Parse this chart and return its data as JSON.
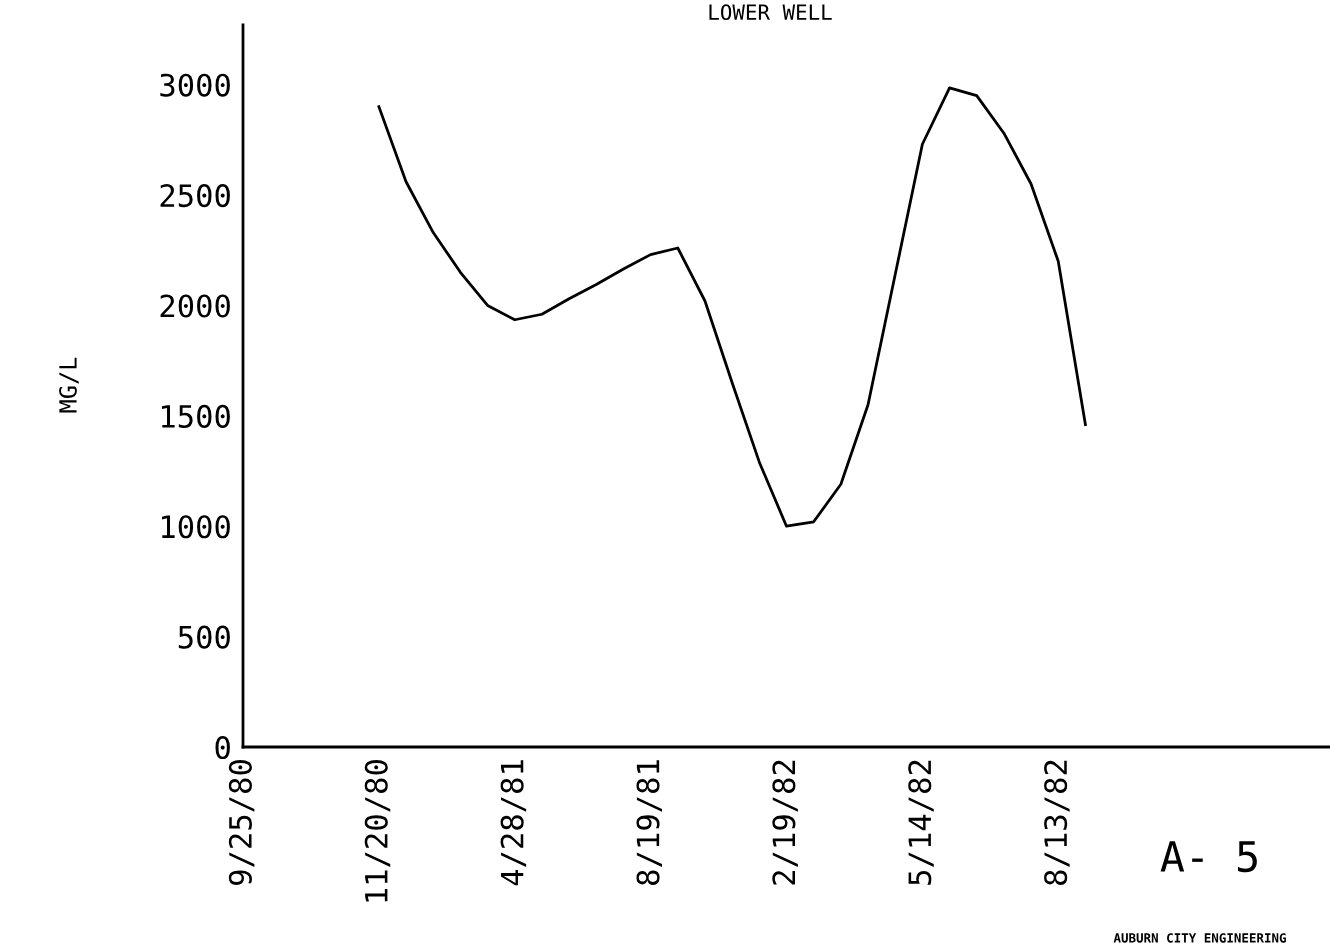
{
  "chart_data": {
    "type": "line",
    "title": "LOWER WELL",
    "ylabel": "MG/L",
    "categories": [
      "9/25/80",
      null,
      null,
      null,
      null,
      "11/20/80",
      null,
      null,
      null,
      null,
      "4/28/81",
      null,
      null,
      null,
      null,
      "8/19/81",
      null,
      null,
      null,
      null,
      "2/19/82",
      null,
      null,
      null,
      null,
      "5/14/82",
      null,
      null,
      null,
      null,
      "8/13/82",
      null,
      null,
      null,
      null,
      null,
      null,
      null,
      null,
      null,
      null
    ],
    "series": [
      {
        "color": "#000000",
        "values": [
          null,
          null,
          null,
          null,
          null,
          2900,
          2560,
          2330,
          2150,
          2000,
          1935,
          1960,
          2030,
          2095,
          2165,
          2230,
          2260,
          2020,
          1650,
          1290,
          1000,
          1020,
          1190,
          1550,
          2140,
          2730,
          2985,
          2950,
          2780,
          2550,
          2200,
          1460,
          null,
          null,
          null,
          null,
          null,
          null,
          null,
          null,
          null
        ]
      }
    ],
    "ylim": [
      0,
      3270
    ],
    "yticks": [
      0,
      500,
      1000,
      1500,
      2000,
      2500,
      3000
    ],
    "grid": false,
    "marker": "none",
    "line_style": "solid",
    "annotations": [
      "A- 5",
      "AUBURN CITY ENGINEERING"
    ]
  }
}
